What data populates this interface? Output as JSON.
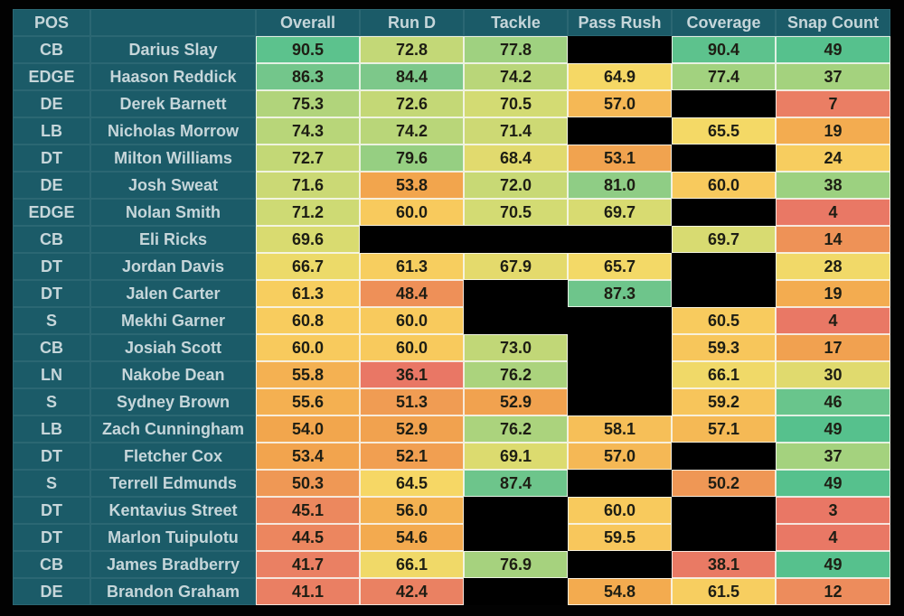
{
  "chart_data": {
    "type": "table",
    "columns": [
      {
        "key": "pos",
        "label": "POS"
      },
      {
        "key": "name",
        "label": ""
      },
      {
        "key": "overall",
        "label": "Overall"
      },
      {
        "key": "run_d",
        "label": "Run D"
      },
      {
        "key": "tackle",
        "label": "Tackle"
      },
      {
        "key": "pass_rush",
        "label": "Pass Rush"
      },
      {
        "key": "coverage",
        "label": "Coverage"
      },
      {
        "key": "snaps",
        "label": "Snap Count"
      }
    ],
    "rows": [
      {
        "pos": "CB",
        "name": "Darius Slay",
        "overall": "90.5",
        "run_d": "72.8",
        "tackle": "77.8",
        "pass_rush": null,
        "coverage": "90.4",
        "snaps": "49"
      },
      {
        "pos": "EDGE",
        "name": "Haason Reddick",
        "overall": "86.3",
        "run_d": "84.4",
        "tackle": "74.2",
        "pass_rush": "64.9",
        "coverage": "77.4",
        "snaps": "37"
      },
      {
        "pos": "DE",
        "name": "Derek Barnett",
        "overall": "75.3",
        "run_d": "72.6",
        "tackle": "70.5",
        "pass_rush": "57.0",
        "coverage": null,
        "snaps": "7"
      },
      {
        "pos": "LB",
        "name": "Nicholas Morrow",
        "overall": "74.3",
        "run_d": "74.2",
        "tackle": "71.4",
        "pass_rush": null,
        "coverage": "65.5",
        "snaps": "19"
      },
      {
        "pos": "DT",
        "name": "Milton Williams",
        "overall": "72.7",
        "run_d": "79.6",
        "tackle": "68.4",
        "pass_rush": "53.1",
        "coverage": null,
        "snaps": "24"
      },
      {
        "pos": "DE",
        "name": "Josh Sweat",
        "overall": "71.6",
        "run_d": "53.8",
        "tackle": "72.0",
        "pass_rush": "81.0",
        "coverage": "60.0",
        "snaps": "38"
      },
      {
        "pos": "EDGE",
        "name": "Nolan Smith",
        "overall": "71.2",
        "run_d": "60.0",
        "tackle": "70.5",
        "pass_rush": "69.7",
        "coverage": null,
        "snaps": "4"
      },
      {
        "pos": "CB",
        "name": "Eli Ricks",
        "overall": "69.6",
        "run_d": null,
        "tackle": null,
        "pass_rush": null,
        "coverage": "69.7",
        "snaps": "14"
      },
      {
        "pos": "DT",
        "name": "Jordan Davis",
        "overall": "66.7",
        "run_d": "61.3",
        "tackle": "67.9",
        "pass_rush": "65.7",
        "coverage": null,
        "snaps": "28"
      },
      {
        "pos": "DT",
        "name": "Jalen Carter",
        "overall": "61.3",
        "run_d": "48.4",
        "tackle": null,
        "pass_rush": "87.3",
        "coverage": null,
        "snaps": "19"
      },
      {
        "pos": "S",
        "name": "Mekhi Garner",
        "overall": "60.8",
        "run_d": "60.0",
        "tackle": null,
        "pass_rush": null,
        "coverage": "60.5",
        "snaps": "4"
      },
      {
        "pos": "CB",
        "name": "Josiah Scott",
        "overall": "60.0",
        "run_d": "60.0",
        "tackle": "73.0",
        "pass_rush": null,
        "coverage": "59.3",
        "snaps": "17"
      },
      {
        "pos": "LN",
        "name": "Nakobe Dean",
        "overall": "55.8",
        "run_d": "36.1",
        "tackle": "76.2",
        "pass_rush": null,
        "coverage": "66.1",
        "snaps": "30"
      },
      {
        "pos": "S",
        "name": "Sydney Brown",
        "overall": "55.6",
        "run_d": "51.3",
        "tackle": "52.9",
        "pass_rush": null,
        "coverage": "59.2",
        "snaps": "46"
      },
      {
        "pos": "LB",
        "name": "Zach Cunningham",
        "overall": "54.0",
        "run_d": "52.9",
        "tackle": "76.2",
        "pass_rush": "58.1",
        "coverage": "57.1",
        "snaps": "49"
      },
      {
        "pos": "DT",
        "name": "Fletcher Cox",
        "overall": "53.4",
        "run_d": "52.1",
        "tackle": "69.1",
        "pass_rush": "57.0",
        "coverage": null,
        "snaps": "37"
      },
      {
        "pos": "S",
        "name": "Terrell Edmunds",
        "overall": "50.3",
        "run_d": "64.5",
        "tackle": "87.4",
        "pass_rush": null,
        "coverage": "50.2",
        "snaps": "49"
      },
      {
        "pos": "DT",
        "name": "Kentavius Street",
        "overall": "45.1",
        "run_d": "56.0",
        "tackle": null,
        "pass_rush": "60.0",
        "coverage": null,
        "snaps": "3"
      },
      {
        "pos": "DT",
        "name": "Marlon Tuipulotu",
        "overall": "44.5",
        "run_d": "54.6",
        "tackle": null,
        "pass_rush": "59.5",
        "coverage": null,
        "snaps": "4"
      },
      {
        "pos": "CB",
        "name": "James Bradberry",
        "overall": "41.7",
        "run_d": "66.1",
        "tackle": "76.9",
        "pass_rush": null,
        "coverage": "38.1",
        "snaps": "49"
      },
      {
        "pos": "DE",
        "name": "Brandon Graham",
        "overall": "41.1",
        "run_d": "42.4",
        "tackle": null,
        "pass_rush": "54.8",
        "coverage": "61.5",
        "snaps": "12"
      }
    ]
  },
  "colors": {
    "background": "#020202",
    "teal": "#1b5b68",
    "teal_text": "#c6d6da",
    "value_text": "#1e1e14",
    "missing_cell": "#000000",
    "grid_line": "rgba(248,248,242,0.85)",
    "heat_scale_stops": [
      {
        "t": 0.0,
        "hex": "#e87366"
      },
      {
        "t": 0.15,
        "hex": "#ea8063"
      },
      {
        "t": 0.26,
        "hex": "#ee9158"
      },
      {
        "t": 0.35,
        "hex": "#f2a64d"
      },
      {
        "t": 0.45,
        "hex": "#f8ca5d"
      },
      {
        "t": 0.54,
        "hex": "#f5d966"
      },
      {
        "t": 0.62,
        "hex": "#d5db72"
      },
      {
        "t": 0.75,
        "hex": "#9ed180"
      },
      {
        "t": 0.86,
        "hex": "#7cc88a"
      },
      {
        "t": 1.0,
        "hex": "#4fc08e"
      }
    ],
    "grade_domain": [
      33,
      93
    ],
    "snap_domain": [
      1,
      50
    ]
  }
}
